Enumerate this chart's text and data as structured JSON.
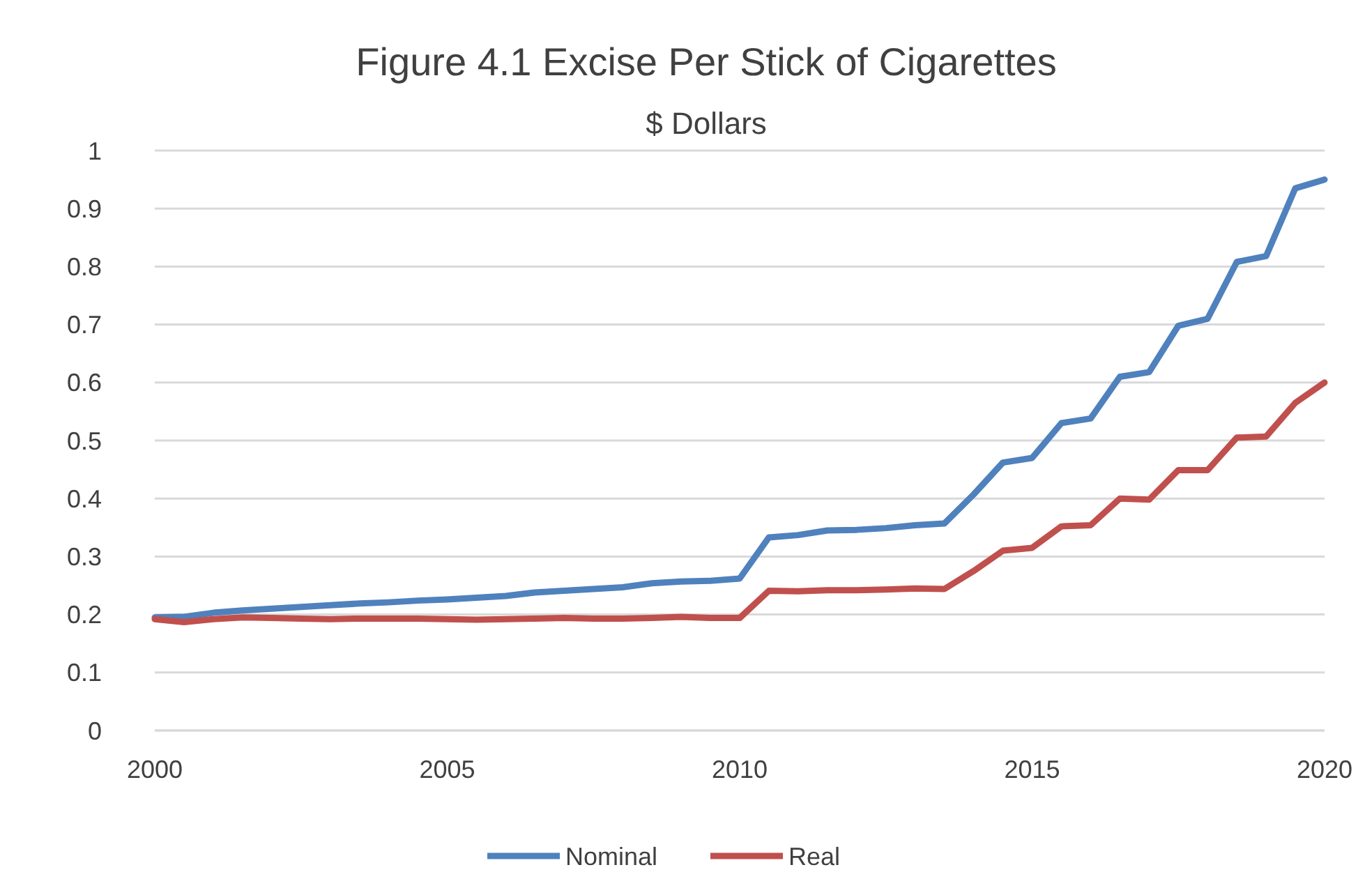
{
  "chart_data": {
    "type": "line",
    "title": "Figure 4.1 Excise Per Stick of Cigarettes",
    "subtitle": "$ Dollars",
    "x": [
      2000,
      2000.5,
      2001,
      2001.5,
      2002,
      2002.5,
      2003,
      2003.5,
      2004,
      2004.5,
      2005,
      2005.5,
      2006,
      2006.5,
      2007,
      2007.5,
      2008,
      2008.5,
      2009,
      2009.5,
      2010,
      2010.5,
      2011,
      2011.5,
      2012,
      2012.5,
      2013,
      2013.5,
      2014,
      2014.5,
      2015,
      2015.5,
      2016,
      2016.5,
      2017,
      2017.5,
      2018,
      2018.5,
      2019,
      2019.5,
      2020
    ],
    "series": [
      {
        "name": "Nominal",
        "color": "#4f81bd",
        "values": [
          0.195,
          0.196,
          0.203,
          0.207,
          0.21,
          0.213,
          0.216,
          0.219,
          0.221,
          0.224,
          0.226,
          0.229,
          0.232,
          0.238,
          0.241,
          0.244,
          0.247,
          0.254,
          0.257,
          0.258,
          0.262,
          0.333,
          0.337,
          0.345,
          0.346,
          0.349,
          0.354,
          0.357,
          0.407,
          0.462,
          0.47,
          0.53,
          0.538,
          0.61,
          0.618,
          0.698,
          0.71,
          0.808,
          0.818,
          0.935,
          0.95
        ]
      },
      {
        "name": "Real",
        "color": "#c0504d",
        "values": [
          0.192,
          0.187,
          0.192,
          0.195,
          0.194,
          0.193,
          0.192,
          0.193,
          0.193,
          0.193,
          0.192,
          0.191,
          0.192,
          0.193,
          0.194,
          0.193,
          0.193,
          0.194,
          0.196,
          0.194,
          0.194,
          0.241,
          0.24,
          0.242,
          0.242,
          0.243,
          0.245,
          0.244,
          0.275,
          0.31,
          0.315,
          0.352,
          0.354,
          0.4,
          0.398,
          0.449,
          0.449,
          0.505,
          0.507,
          0.565,
          0.6
        ]
      }
    ],
    "xlim": [
      2000,
      2020
    ],
    "xticks": [
      2000,
      2005,
      2010,
      2015,
      2020
    ],
    "ylim": [
      0,
      1
    ],
    "yticks": [
      0,
      {
        "value": 0.1,
        "label": "0.1"
      },
      {
        "value": 0.2,
        "label": "0.2"
      },
      {
        "value": 0.3,
        "label": "0.3"
      },
      {
        "value": 0.4,
        "label": "0.4"
      },
      {
        "value": 0.5,
        "label": "0.5"
      },
      {
        "value": 0.6,
        "label": "0.6"
      },
      {
        "value": 0.7,
        "label": "0.7"
      },
      {
        "value": 0.8,
        "label": "0.8"
      },
      {
        "value": 0.9,
        "label": "0.9"
      },
      1
    ],
    "grid": "y",
    "legend": "bottom",
    "marker": "none",
    "line_style": "solid"
  }
}
